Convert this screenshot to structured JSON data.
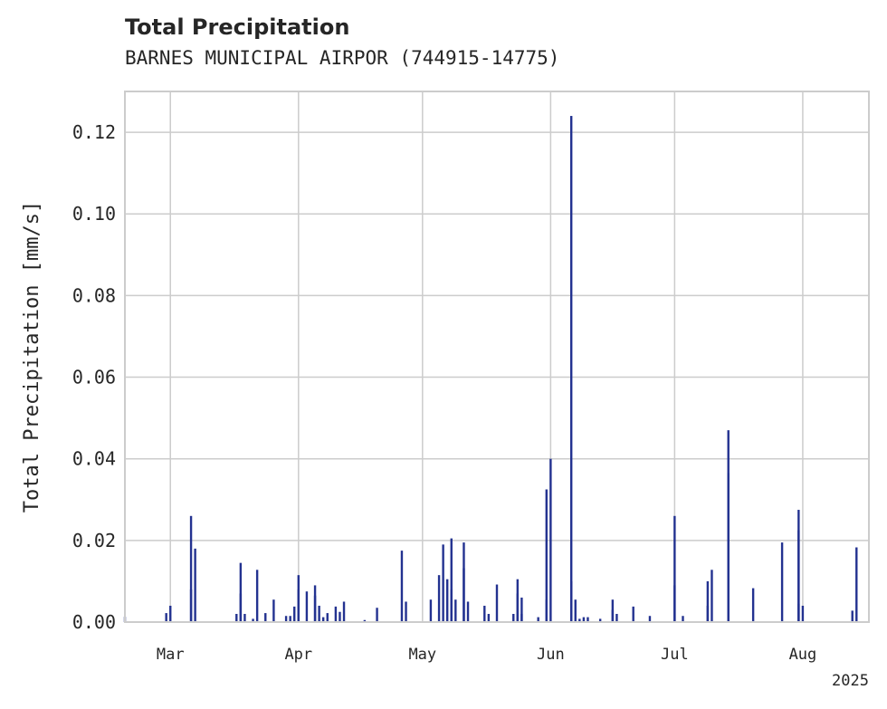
{
  "chart_data": {
    "type": "bar",
    "title": "Total Precipitation",
    "subtitle": "BARNES MUNICIPAL AIRPOR (744915-14775)",
    "ylabel": "Total Precipitation [mm/s]",
    "xlabel": "",
    "year_label": "2025",
    "ylim": [
      0,
      0.13
    ],
    "y_ticks": [
      "0.00",
      "0.02",
      "0.04",
      "0.06",
      "0.08",
      "0.10",
      "0.12"
    ],
    "x_ticks": [
      {
        "label": "Mar",
        "date": "2025-03-01"
      },
      {
        "label": "Apr",
        "date": "2025-04-01"
      },
      {
        "label": "May",
        "date": "2025-05-01"
      },
      {
        "label": "Jun",
        "date": "2025-06-01"
      },
      {
        "label": "Jul",
        "date": "2025-07-01"
      },
      {
        "label": "Aug",
        "date": "2025-08-01"
      }
    ],
    "xlim": [
      "2025-02-18",
      "2025-08-17"
    ],
    "grid": true,
    "color": "#233290",
    "points": [
      [
        "2025-02-18",
        0.0013
      ],
      [
        "2025-02-28",
        0.0022
      ],
      [
        "2025-03-01",
        0.004
      ],
      [
        "2025-03-06",
        0.008
      ],
      [
        "2025-03-06",
        0.026
      ],
      [
        "2025-03-07",
        0.018
      ],
      [
        "2025-03-17",
        0.002
      ],
      [
        "2025-03-18",
        0.0145
      ],
      [
        "2025-03-18",
        0.007
      ],
      [
        "2025-03-19",
        0.002
      ],
      [
        "2025-03-21",
        0.0008
      ],
      [
        "2025-03-22",
        0.0128
      ],
      [
        "2025-03-24",
        0.0022
      ],
      [
        "2025-03-26",
        0.0055
      ],
      [
        "2025-03-29",
        0.0015
      ],
      [
        "2025-03-30",
        0.0015
      ],
      [
        "2025-03-31",
        0.0038
      ],
      [
        "2025-04-01",
        0.008
      ],
      [
        "2025-04-01",
        0.0115
      ],
      [
        "2025-04-03",
        0.0075
      ],
      [
        "2025-04-05",
        0.0065
      ],
      [
        "2025-04-05",
        0.009
      ],
      [
        "2025-04-06",
        0.004
      ],
      [
        "2025-04-07",
        0.0012
      ],
      [
        "2025-04-08",
        0.0022
      ],
      [
        "2025-04-10",
        0.0038
      ],
      [
        "2025-04-11",
        0.0025
      ],
      [
        "2025-04-12",
        0.005
      ],
      [
        "2025-04-17",
        0.0005
      ],
      [
        "2025-04-20",
        0.0035
      ],
      [
        "2025-04-26",
        0.0175
      ],
      [
        "2025-04-27",
        0.005
      ],
      [
        "2025-05-03",
        0.0055
      ],
      [
        "2025-05-05",
        0.0115
      ],
      [
        "2025-05-06",
        0.019
      ],
      [
        "2025-05-07",
        0.0105
      ],
      [
        "2025-05-08",
        0.0205
      ],
      [
        "2025-05-08",
        0.008
      ],
      [
        "2025-05-09",
        0.0055
      ],
      [
        "2025-05-11",
        0.0132
      ],
      [
        "2025-05-11",
        0.0195
      ],
      [
        "2025-05-12",
        0.005
      ],
      [
        "2025-05-16",
        0.004
      ],
      [
        "2025-05-17",
        0.002
      ],
      [
        "2025-05-19",
        0.0092
      ],
      [
        "2025-05-23",
        0.002
      ],
      [
        "2025-05-24",
        0.007
      ],
      [
        "2025-05-24",
        0.0105
      ],
      [
        "2025-05-25",
        0.006
      ],
      [
        "2025-05-25",
        0.002
      ],
      [
        "2025-05-29",
        0.0012
      ],
      [
        "2025-05-31",
        0.0055
      ],
      [
        "2025-05-31",
        0.0325
      ],
      [
        "2025-06-01",
        0.04
      ],
      [
        "2025-06-06",
        0.01
      ],
      [
        "2025-06-06",
        0.124
      ],
      [
        "2025-06-07",
        0.0055
      ],
      [
        "2025-06-08",
        0.0008
      ],
      [
        "2025-06-09",
        0.0012
      ],
      [
        "2025-06-10",
        0.0012
      ],
      [
        "2025-06-13",
        0.0008
      ],
      [
        "2025-06-16",
        0.003
      ],
      [
        "2025-06-16",
        0.0055
      ],
      [
        "2025-06-17",
        0.002
      ],
      [
        "2025-06-21",
        0.0038
      ],
      [
        "2025-06-25",
        0.0015
      ],
      [
        "2025-07-01",
        0.026
      ],
      [
        "2025-07-01",
        0.009
      ],
      [
        "2025-07-03",
        0.0015
      ],
      [
        "2025-07-09",
        0.01
      ],
      [
        "2025-07-09",
        0.004
      ],
      [
        "2025-07-10",
        0.0128
      ],
      [
        "2025-07-14",
        0.003
      ],
      [
        "2025-07-14",
        0.0365
      ],
      [
        "2025-07-14",
        0.047
      ],
      [
        "2025-07-20",
        0.0083
      ],
      [
        "2025-07-27",
        0.0195
      ],
      [
        "2025-07-31",
        0.0045
      ],
      [
        "2025-07-31",
        0.0225
      ],
      [
        "2025-07-31",
        0.0275
      ],
      [
        "2025-08-01",
        0.004
      ],
      [
        "2025-08-13",
        0.0028
      ],
      [
        "2025-08-14",
        0.0183
      ]
    ]
  }
}
